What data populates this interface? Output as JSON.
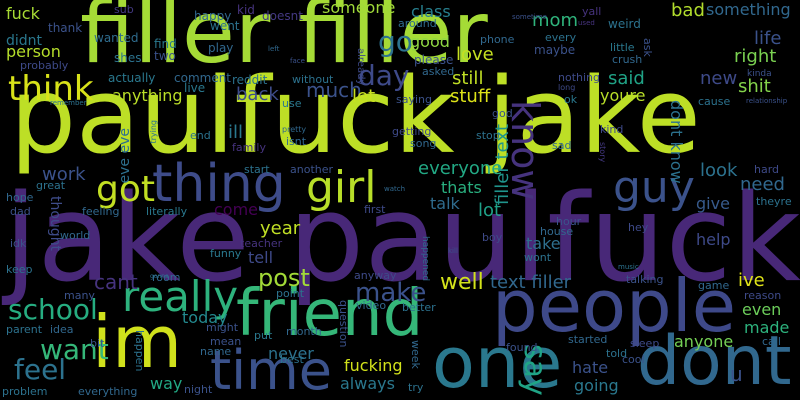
{
  "cloud": {
    "background": "#000000",
    "words": [
      {
        "text": "jake paulfuck",
        "color": "#482878"
      },
      {
        "text": "paulfuck jake",
        "color": "#bddf26"
      },
      {
        "text": "filler filler",
        "color": "#a5db36"
      },
      {
        "text": "people",
        "color": "#3e4989"
      },
      {
        "text": "friend",
        "color": "#35b779"
      },
      {
        "text": "im",
        "color": "#d0e11c"
      },
      {
        "text": "dont",
        "color": "#31688e"
      },
      {
        "text": "one",
        "color": "#2a788e"
      },
      {
        "text": "time",
        "color": "#3b528b"
      },
      {
        "text": "thing",
        "color": "#3e4c8a"
      },
      {
        "text": "girl",
        "color": "#b8de29"
      },
      {
        "text": "guy",
        "color": "#3b528b"
      },
      {
        "text": "know",
        "color": "#46337e"
      },
      {
        "text": "really",
        "color": "#2db27d"
      },
      {
        "text": "got",
        "color": "#c2df23"
      },
      {
        "text": "think",
        "color": "#d8e219"
      },
      {
        "text": "school",
        "color": "#26ad81"
      },
      {
        "text": "want",
        "color": "#35b779"
      },
      {
        "text": "feel",
        "color": "#2c728e"
      },
      {
        "text": "say",
        "color": "#20a486"
      },
      {
        "text": "make",
        "color": "#3b528b"
      },
      {
        "text": "day",
        "color": "#3e4a89"
      },
      {
        "text": "go",
        "color": "#2c728e"
      },
      {
        "text": "post",
        "color": "#a2da37"
      },
      {
        "text": "work",
        "color": "#3b528b"
      },
      {
        "text": "cant",
        "color": "#46337e"
      },
      {
        "text": "well",
        "color": "#d2e21b"
      },
      {
        "text": "text filler",
        "color": "#31688e"
      },
      {
        "text": "filler text",
        "color": "#1f948c"
      },
      {
        "text": "much",
        "color": "#3b528b"
      },
      {
        "text": "back",
        "color": "#3e4c8a"
      },
      {
        "text": "anything",
        "color": "#bade28"
      },
      {
        "text": "fuck",
        "color": "#a8db34"
      },
      {
        "text": "didnt",
        "color": "#2a788e"
      },
      {
        "text": "person",
        "color": "#b5de2b"
      },
      {
        "text": "someone",
        "color": "#a0da39"
      },
      {
        "text": "class",
        "color": "#277f8e"
      },
      {
        "text": "good",
        "color": "#90d743"
      },
      {
        "text": "love",
        "color": "#c5e021"
      },
      {
        "text": "mom",
        "color": "#2fb47c"
      },
      {
        "text": "bad",
        "color": "#b2dd2d"
      },
      {
        "text": "something",
        "color": "#31688e"
      },
      {
        "text": "life",
        "color": "#3b528b"
      },
      {
        "text": "right",
        "color": "#7ad151"
      },
      {
        "text": "said",
        "color": "#20a386"
      },
      {
        "text": "new",
        "color": "#3e4a89"
      },
      {
        "text": "shit",
        "color": "#84d44b"
      },
      {
        "text": "youre",
        "color": "#b8de29"
      },
      {
        "text": "dont know",
        "color": "#2c728e"
      },
      {
        "text": "still",
        "color": "#c0df25"
      },
      {
        "text": "stuff",
        "color": "#dde318"
      },
      {
        "text": "let",
        "color": "#c8e020"
      },
      {
        "text": "ill",
        "color": "#2a788e"
      },
      {
        "text": "everyone",
        "color": "#22a884"
      },
      {
        "text": "thats",
        "color": "#29af7f"
      },
      {
        "text": "talk",
        "color": "#2f6c8e"
      },
      {
        "text": "lot",
        "color": "#1fa188"
      },
      {
        "text": "look",
        "color": "#2c728e"
      },
      {
        "text": "need",
        "color": "#31688e"
      },
      {
        "text": "give",
        "color": "#375a8c"
      },
      {
        "text": "help",
        "color": "#3e4a89"
      },
      {
        "text": "ive",
        "color": "#dfe318"
      },
      {
        "text": "even",
        "color": "#6ccd5a"
      },
      {
        "text": "made",
        "color": "#2db27d"
      },
      {
        "text": "anyone",
        "color": "#74d055"
      },
      {
        "text": "take",
        "color": "#2e6f8e"
      },
      {
        "text": "year",
        "color": "#c0df25"
      },
      {
        "text": "come",
        "color": "#440154"
      },
      {
        "text": "tell",
        "color": "#3e4a89"
      },
      {
        "text": "today",
        "color": "#23898e"
      },
      {
        "text": "never",
        "color": "#2c728e"
      },
      {
        "text": "always",
        "color": "#2a788e"
      },
      {
        "text": "fucking",
        "color": "#d2e21b"
      },
      {
        "text": "way",
        "color": "#22a884"
      },
      {
        "text": "going",
        "color": "#2a788e"
      },
      {
        "text": "hate",
        "color": "#3b528b"
      },
      {
        "text": "thought",
        "color": "#3e4c8a"
      },
      {
        "text": "eve eve",
        "color": "#2d708e"
      },
      {
        "text": "u",
        "color": "#3b528b"
      },
      {
        "text": "happy",
        "color": "#31688e"
      },
      {
        "text": "kid",
        "color": "#46337e"
      },
      {
        "text": "went",
        "color": "#2c728e"
      },
      {
        "text": "doesnt",
        "color": "#443983"
      },
      {
        "text": "wanted",
        "color": "#2f6c8e"
      },
      {
        "text": "find",
        "color": "#2a788e"
      },
      {
        "text": "two",
        "color": "#3b528b"
      },
      {
        "text": "play",
        "color": "#31688e"
      },
      {
        "text": "shes",
        "color": "#2c728e"
      },
      {
        "text": "probably",
        "color": "#3e4a89"
      },
      {
        "text": "actually",
        "color": "#2a788e"
      },
      {
        "text": "comment",
        "color": "#31688e"
      },
      {
        "text": "reddit",
        "color": "#2c728e"
      },
      {
        "text": "live",
        "color": "#2a788e"
      },
      {
        "text": "thank",
        "color": "#3b528b"
      },
      {
        "text": "sub",
        "color": "#443983"
      },
      {
        "text": "around",
        "color": "#2f6c8e"
      },
      {
        "text": "phone",
        "color": "#31688e"
      },
      {
        "text": "please",
        "color": "#3b528b"
      },
      {
        "text": "asked",
        "color": "#31688e"
      },
      {
        "text": "every",
        "color": "#2c728e"
      },
      {
        "text": "maybe",
        "color": "#3b528b"
      },
      {
        "text": "little",
        "color": "#2a788e"
      },
      {
        "text": "crush",
        "color": "#31688e"
      },
      {
        "text": "nothing",
        "color": "#3e4a89"
      },
      {
        "text": "weird",
        "color": "#2c728e"
      },
      {
        "text": "yall",
        "color": "#46337e"
      },
      {
        "text": "ask",
        "color": "#3b528b"
      },
      {
        "text": "long",
        "color": "#3e4a89"
      },
      {
        "text": "ok",
        "color": "#2a788e"
      },
      {
        "text": "god",
        "color": "#3b528b"
      },
      {
        "text": "stop",
        "color": "#2c728e"
      },
      {
        "text": "kind",
        "color": "#3e4a89"
      },
      {
        "text": "sad",
        "color": "#31688e"
      },
      {
        "text": "kinda",
        "color": "#3b528b"
      },
      {
        "text": "cause",
        "color": "#2c728e"
      },
      {
        "text": "story",
        "color": "#443983"
      },
      {
        "text": "use",
        "color": "#2a788e"
      },
      {
        "text": "saying",
        "color": "#3b528b"
      },
      {
        "text": "isnt",
        "color": "#31688e"
      },
      {
        "text": "family",
        "color": "#46337e"
      },
      {
        "text": "end",
        "color": "#2c728e"
      },
      {
        "text": "getting",
        "color": "#3e4a89"
      },
      {
        "text": "song",
        "color": "#31688e"
      },
      {
        "text": "start",
        "color": "#2c728e"
      },
      {
        "text": "another",
        "color": "#3b528b"
      },
      {
        "text": "hard",
        "color": "#3e4a89"
      },
      {
        "text": "hope",
        "color": "#31688e"
      },
      {
        "text": "great",
        "color": "#2c728e"
      },
      {
        "text": "dad",
        "color": "#3b528b"
      },
      {
        "text": "feeling",
        "color": "#31688e"
      },
      {
        "text": "literally",
        "color": "#2a788e"
      },
      {
        "text": "first",
        "color": "#3e4a89"
      },
      {
        "text": "theyre",
        "color": "#2c728e"
      },
      {
        "text": "idk",
        "color": "#3b528b"
      },
      {
        "text": "world",
        "color": "#31688e"
      },
      {
        "text": "teacher",
        "color": "#46337e"
      },
      {
        "text": "funny",
        "color": "#2a788e"
      },
      {
        "text": "hour",
        "color": "#3b528b"
      },
      {
        "text": "house",
        "color": "#31688e"
      },
      {
        "text": "wont",
        "color": "#2c728e"
      },
      {
        "text": "hey",
        "color": "#3e4a89"
      },
      {
        "text": "keep",
        "color": "#2c728e"
      },
      {
        "text": "many",
        "color": "#3b528b"
      },
      {
        "text": "room",
        "color": "#31688e"
      },
      {
        "text": "point",
        "color": "#2c728e"
      },
      {
        "text": "anyway",
        "color": "#3e4a89"
      },
      {
        "text": "question",
        "color": "#3b528b"
      },
      {
        "text": "video",
        "color": "#31688e"
      },
      {
        "text": "better",
        "color": "#2c728e"
      },
      {
        "text": "talking",
        "color": "#3b528b"
      },
      {
        "text": "game",
        "color": "#31688e"
      },
      {
        "text": "reason",
        "color": "#3e4a89"
      },
      {
        "text": "parent",
        "color": "#2c728e"
      },
      {
        "text": "idea",
        "color": "#31688e"
      },
      {
        "text": "might",
        "color": "#3b528b"
      },
      {
        "text": "put",
        "color": "#2a788e"
      },
      {
        "text": "month",
        "color": "#31688e"
      },
      {
        "text": "happen",
        "color": "#2c728e"
      },
      {
        "text": "mean",
        "color": "#3b528b"
      },
      {
        "text": "name",
        "color": "#31688e"
      },
      {
        "text": "best",
        "color": "#2c728e"
      },
      {
        "text": "found",
        "color": "#3b528b"
      },
      {
        "text": "started",
        "color": "#31688e"
      },
      {
        "text": "told",
        "color": "#2c728e"
      },
      {
        "text": "sleep",
        "color": "#3e4a89"
      },
      {
        "text": "call",
        "color": "#31688e"
      },
      {
        "text": "cool",
        "color": "#3b528b"
      },
      {
        "text": "problem",
        "color": "#2c728e"
      },
      {
        "text": "everything",
        "color": "#31688e"
      },
      {
        "text": "night",
        "color": "#3b528b"
      },
      {
        "text": "try",
        "color": "#2c728e"
      },
      {
        "text": "bit",
        "color": "#3b528b"
      },
      {
        "text": "week",
        "color": "#31688e"
      },
      {
        "text": "without",
        "color": "#2c728e"
      },
      {
        "text": "boy",
        "color": "#3e4a89"
      },
      {
        "text": "used",
        "color": "#46337e"
      },
      {
        "text": "sometime",
        "color": "#3b528b"
      },
      {
        "text": "left",
        "color": "#31688e"
      },
      {
        "text": "already",
        "color": "#3e4a89"
      },
      {
        "text": "remember",
        "color": "#2c728e"
      },
      {
        "text": "relationship",
        "color": "#3b528b"
      },
      {
        "text": "pretty",
        "color": "#31688e"
      },
      {
        "text": "trying",
        "color": "#2c728e"
      },
      {
        "text": "face",
        "color": "#3b528b"
      },
      {
        "text": "watch",
        "color": "#31688e"
      },
      {
        "text": "music",
        "color": "#2c728e"
      },
      {
        "text": "kill",
        "color": "#3b528b"
      },
      {
        "text": "happened",
        "color": "#31688e"
      },
      {
        "text": "gonna",
        "color": "#2c728e"
      }
    ]
  }
}
